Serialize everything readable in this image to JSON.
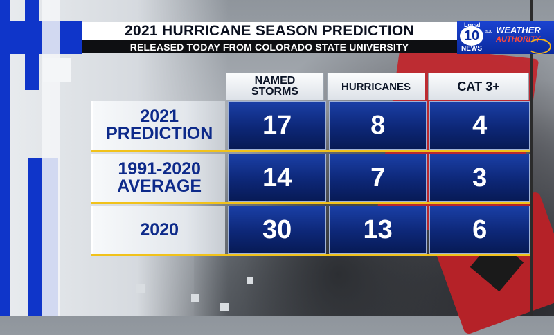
{
  "header": {
    "title": "2021 HURRICANE SEASON PREDICTION",
    "subtitle": "RELEASED TODAY FROM COLORADO STATE UNIVERSITY"
  },
  "logo": {
    "local": "Local",
    "number": "10",
    "news": "NEWS",
    "network": "abc",
    "weather": "WEATHER",
    "authority": "AUTHORITY"
  },
  "table": {
    "columns": [
      "NAMED STORMS",
      "HURRICANES",
      "CAT 3+"
    ],
    "columns_lines": {
      "named_1": "NAMED",
      "named_2": "STORMS"
    },
    "rows": [
      {
        "label_1": "2021",
        "label_2": "PREDICTION",
        "values": [
          "17",
          "8",
          "4"
        ]
      },
      {
        "label_1": "1991-2020",
        "label_2": "AVERAGE",
        "values": [
          "14",
          "7",
          "3"
        ]
      },
      {
        "label_1": "2020",
        "label_2": "",
        "values": [
          "30",
          "13",
          "6"
        ]
      }
    ]
  },
  "colors": {
    "accent_blue": "#0f35c9",
    "cell_blue": "#0d2777",
    "row_divider_gold": "#f1c21b",
    "label_text_blue": "#0d2a8a"
  }
}
